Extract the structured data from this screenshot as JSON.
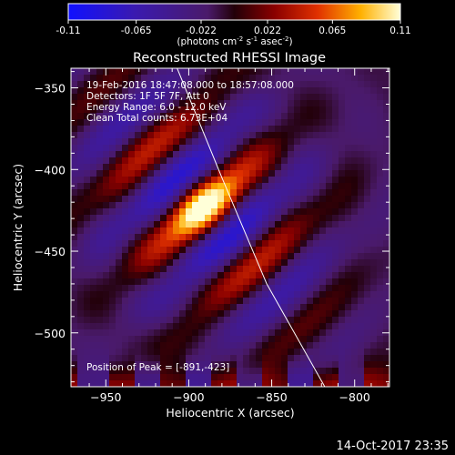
{
  "colorbar": {
    "ticks": [
      "-0.11",
      "-0.065",
      "-0.022",
      "0.022",
      "0.065",
      "0.11"
    ],
    "unit_prefix": "(photons cm",
    "unit_exp1": "-2",
    "unit_mid1": " s",
    "unit_exp2": "-1",
    "unit_mid2": " asec",
    "unit_exp3": "-2",
    "unit_suffix": ")"
  },
  "plot": {
    "title": "Reconstructed RHESSI Image",
    "info": [
      "19-Feb-2016 18:47:08.000 to 18:57:08.000",
      "Detectors: 1F 5F 7F, Att 0",
      "Energy Range: 6.0 - 12.0 keV",
      "Clean      Total counts: 6.73E+04"
    ],
    "peak_label": "Position of Peak = [-891,-423]",
    "timestamp": "14-Oct-2017 23:35"
  },
  "chart_data": {
    "type": "heatmap",
    "title": "Reconstructed RHESSI Image",
    "xlabel": "Heliocentric X (arcsec)",
    "ylabel": "Heliocentric Y (arcsec)",
    "xlim": [
      -971,
      -779
    ],
    "ylim": [
      -533,
      -338
    ],
    "x_ticks": [
      -950,
      -900,
      -850,
      -800
    ],
    "y_ticks": [
      -350,
      -400,
      -450,
      -500
    ],
    "color_range": [
      -0.11,
      0.11
    ],
    "peak": {
      "x": -891,
      "y": -423
    },
    "limb_curve": [
      [
        -907,
        -338
      ],
      [
        -880,
        -405
      ],
      [
        -853,
        -470
      ],
      [
        -818,
        -533
      ]
    ]
  }
}
